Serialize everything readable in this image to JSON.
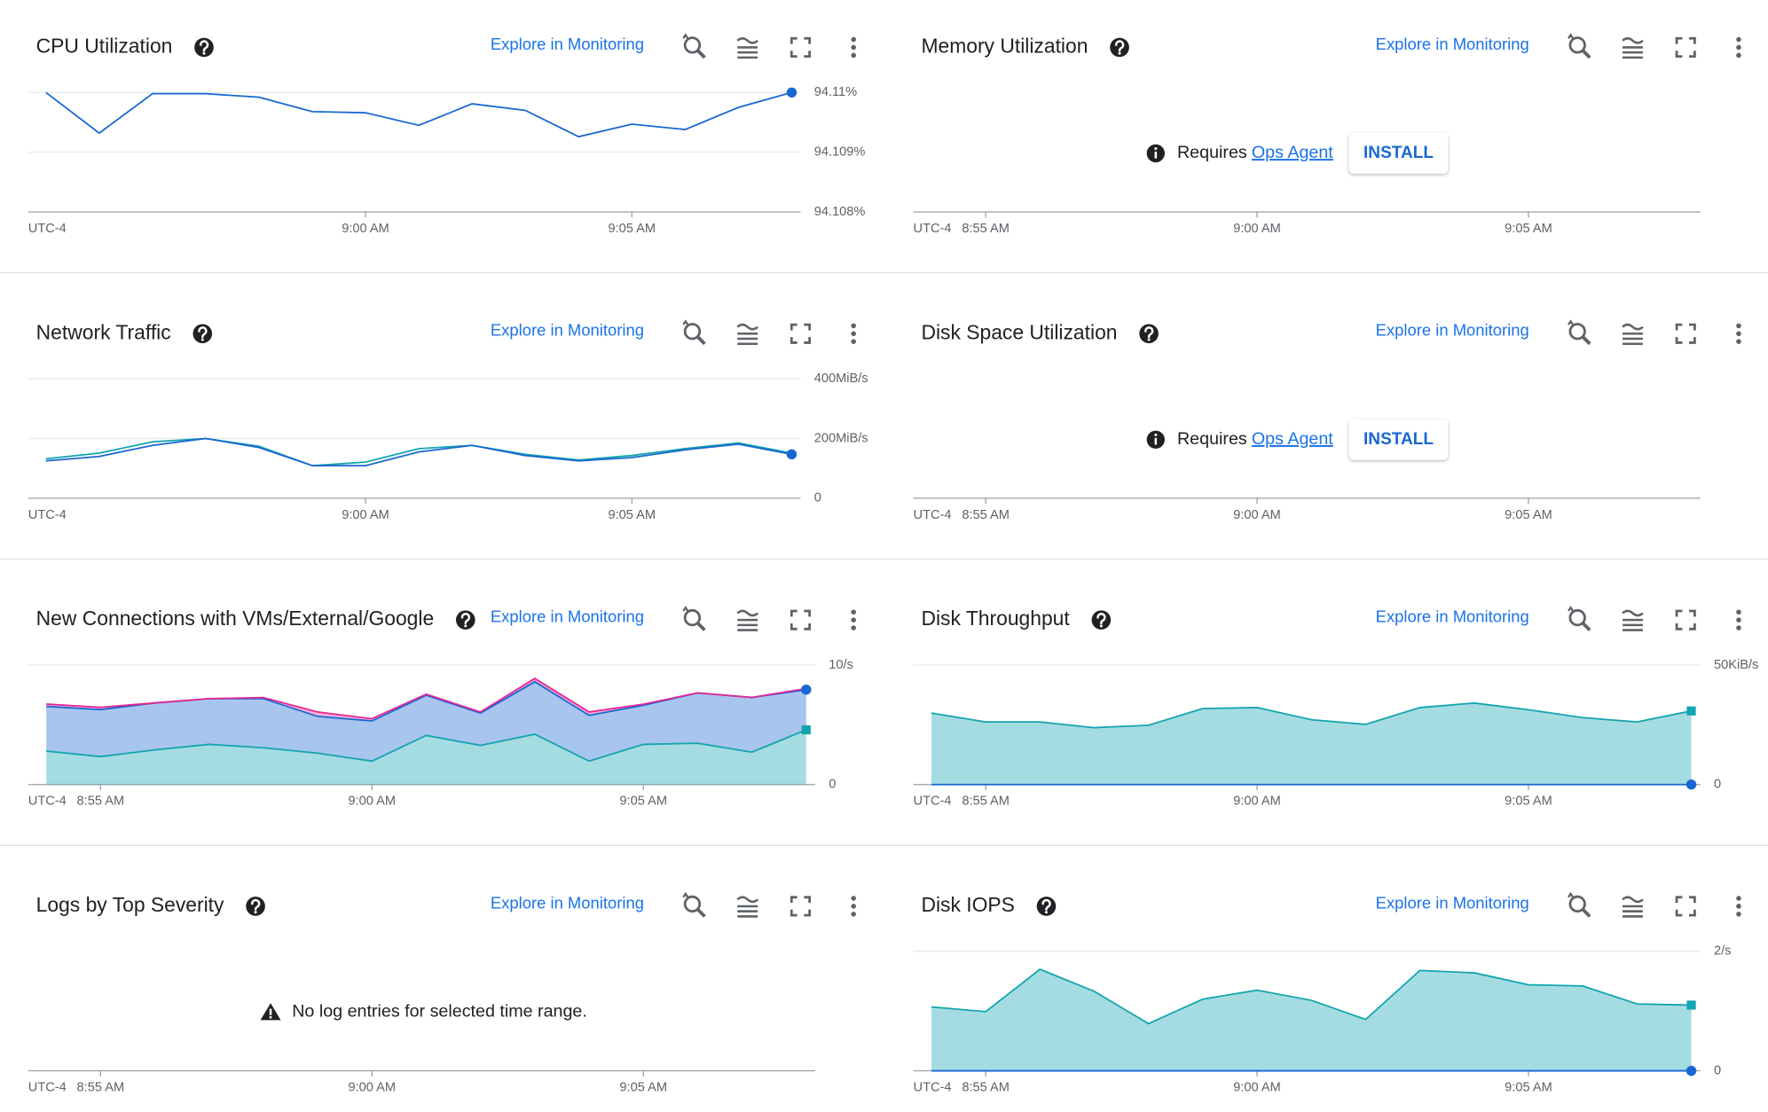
{
  "panels": [
    {
      "title": "CPU Utilization",
      "link": "Explore in Monitoring",
      "chart": {
        "type": "line",
        "timezone": "UTC-4",
        "xlim": [
          "8:53:40 AM",
          "9:08:10 AM"
        ],
        "xticks": [
          "9:00 AM",
          "9:05 AM"
        ],
        "ylim": [
          94.108,
          94.11
        ],
        "yticks": [
          {
            "value": 94.108,
            "label": "94.108%"
          },
          {
            "value": 94.109,
            "label": "94.109%"
          },
          {
            "value": 94.11,
            "label": "94.11%"
          }
        ],
        "x": [
          "8:54 AM",
          "8:55 AM",
          "8:56 AM",
          "8:57 AM",
          "8:58 AM",
          "8:59 AM",
          "9:00 AM",
          "9:01 AM",
          "9:02 AM",
          "9:03 AM",
          "9:04 AM",
          "9:05 AM",
          "9:06 AM",
          "9:07 AM",
          "9:08 AM"
        ],
        "series": [
          {
            "color": "#1967d2",
            "marker": "circle",
            "values": [
              94.11,
              94.10932,
              94.10998,
              94.10998,
              94.10992,
              94.10968,
              94.10966,
              94.10945,
              94.10981,
              94.1097,
              94.10926,
              94.10947,
              94.10938,
              94.10975,
              94.11
            ]
          }
        ]
      }
    },
    {
      "title": "Memory Utilization",
      "link": "Explore in Monitoring",
      "chart": {
        "type": "line",
        "timezone": "UTC-4",
        "xlim": [
          "8:53:40 AM",
          "9:08:10 AM"
        ],
        "xticks": [
          "8:55 AM",
          "9:00 AM",
          "9:05 AM"
        ],
        "series": []
      },
      "notice": {
        "icon": "info",
        "text": "Requires",
        "link": "Ops Agent",
        "button": "INSTALL"
      }
    },
    {
      "title": "Network Traffic",
      "link": "Explore in Monitoring",
      "chart": {
        "type": "line",
        "timezone": "UTC-4",
        "xlim": [
          "8:53:40 AM",
          "9:08:10 AM"
        ],
        "xticks": [
          "9:00 AM",
          "9:05 AM"
        ],
        "ylim": [
          0,
          400
        ],
        "yticks": [
          0,
          {
            "value": 200,
            "label": "200MiB/s"
          },
          {
            "value": 400,
            "label": "400MiB/s"
          }
        ],
        "x": [
          "8:54 AM",
          "8:55 AM",
          "8:56 AM",
          "8:57 AM",
          "8:58 AM",
          "8:59 AM",
          "9:00 AM",
          "9:01 AM",
          "9:02 AM",
          "9:03 AM",
          "9:04 AM",
          "9:05 AM",
          "9:06 AM",
          "9:07 AM",
          "9:08 AM"
        ],
        "series": [
          {
            "color": "#12a4af",
            "values": [
              132,
              151,
              189,
              200,
              174,
              109,
              121,
              166,
              177,
              147,
              128,
              143,
              166,
              185,
              151
            ]
          },
          {
            "color": "#1967d2",
            "marker": "circle",
            "values": [
              125,
              140,
              177,
              200,
              170,
              109,
              109,
              155,
              177,
              143,
              125,
              136,
              162,
              181,
              147
            ]
          }
        ]
      }
    },
    {
      "title": "Disk Space Utilization",
      "link": "Explore in Monitoring",
      "chart": {
        "type": "line",
        "timezone": "UTC-4",
        "xlim": [
          "8:53:40 AM",
          "9:08:10 AM"
        ],
        "xticks": [
          "8:55 AM",
          "9:00 AM",
          "9:05 AM"
        ],
        "series": []
      },
      "notice": {
        "icon": "info",
        "text": "Requires",
        "link": "Ops Agent",
        "button": "INSTALL"
      }
    },
    {
      "title": "New Connections with VMs/External/Google",
      "link": "Explore in Monitoring",
      "chart": {
        "type": "area",
        "timezone": "UTC-4",
        "xlim": [
          "8:53:40 AM",
          "9:08:10 AM"
        ],
        "xticks": [
          "8:55 AM",
          "9:00 AM",
          "9:05 AM"
        ],
        "ylim": [
          0,
          10
        ],
        "yticks": [
          0,
          {
            "value": 10,
            "label": "10/s"
          }
        ],
        "x": [
          "8:54 AM",
          "8:55 AM",
          "8:56 AM",
          "8:57 AM",
          "8:58 AM",
          "8:59 AM",
          "9:00 AM",
          "9:01 AM",
          "9:02 AM",
          "9:03 AM",
          "9:04 AM",
          "9:05 AM",
          "9:06 AM",
          "9:07 AM",
          "9:08 AM"
        ],
        "series": [
          {
            "color": "#12a4af",
            "marker": "square",
            "values": [
              2.8,
              2.34,
              2.9,
              3.36,
              3.08,
              2.62,
              1.96,
              4.11,
              3.27,
              4.21,
              1.96,
              3.36,
              3.46,
              2.71,
              4.58
            ]
          },
          {
            "color": "#1967d2",
            "marker": "circle",
            "values": [
              3.74,
              3.93,
              3.93,
              3.83,
              4.11,
              3.08,
              3.36,
              3.36,
              2.71,
              4.39,
              3.83,
              3.27,
              4.21,
              4.58,
              3.36
            ]
          },
          {
            "color": "#e52592",
            "values": [
              0.19,
              0.19,
              0,
              0,
              0.09,
              0.37,
              0.19,
              0.09,
              0.09,
              0.28,
              0.28,
              0.09,
              0,
              0,
              0.09
            ]
          }
        ]
      }
    },
    {
      "title": "Disk Throughput",
      "link": "Explore in Monitoring",
      "chart": {
        "type": "area",
        "timezone": "UTC-4",
        "xlim": [
          "8:53:40 AM",
          "9:08:10 AM"
        ],
        "xticks": [
          "8:55 AM",
          "9:00 AM",
          "9:05 AM"
        ],
        "ylim": [
          0,
          50
        ],
        "yticks": [
          0,
          {
            "value": 50,
            "label": "50KiB/s"
          }
        ],
        "x": [
          "8:54 AM",
          "8:55 AM",
          "8:56 AM",
          "8:57 AM",
          "8:58 AM",
          "8:59 AM",
          "9:00 AM",
          "9:01 AM",
          "9:02 AM",
          "9:03 AM",
          "9:04 AM",
          "9:05 AM",
          "9:06 AM",
          "9:07 AM",
          "9:08 AM"
        ],
        "series": [
          {
            "color": "#1967d2",
            "marker": "circle",
            "values": [
              0,
              0,
              0,
              0,
              0,
              0,
              0,
              0,
              0,
              0,
              0,
              0,
              0,
              0,
              0
            ]
          },
          {
            "color": "#12a4af",
            "marker": "square",
            "values": [
              29.9,
              26.2,
              26.2,
              23.8,
              24.8,
              31.8,
              32.2,
              27.1,
              25.2,
              32.2,
              34.1,
              31.3,
              28,
              26.2,
              30.8
            ]
          }
        ]
      }
    },
    {
      "title": "Logs by Top Severity",
      "link": "Explore in Monitoring",
      "chart": {
        "type": "line",
        "timezone": "UTC-4",
        "xlim": [
          "8:53:40 AM",
          "9:08:10 AM"
        ],
        "xticks": [
          "8:55 AM",
          "9:00 AM",
          "9:05 AM"
        ],
        "series": []
      },
      "notice": {
        "icon": "warning",
        "text": "No log entries for selected time range."
      }
    },
    {
      "title": "Disk IOPS",
      "link": "Explore in Monitoring",
      "chart": {
        "type": "area",
        "timezone": "UTC-4",
        "xlim": [
          "8:53:40 AM",
          "9:08:10 AM"
        ],
        "xticks": [
          "8:55 AM",
          "9:00 AM",
          "9:05 AM"
        ],
        "ylim": [
          0,
          2
        ],
        "yticks": [
          0,
          {
            "value": 2,
            "label": "2/s"
          }
        ],
        "x": [
          "8:54 AM",
          "8:55 AM",
          "8:56 AM",
          "8:57 AM",
          "8:58 AM",
          "8:59 AM",
          "9:00 AM",
          "9:01 AM",
          "9:02 AM",
          "9:03 AM",
          "9:04 AM",
          "9:05 AM",
          "9:06 AM",
          "9:07 AM",
          "9:08 AM"
        ],
        "series": [
          {
            "color": "#1967d2",
            "marker": "circle",
            "values": [
              0,
              0,
              0,
              0,
              0,
              0,
              0,
              0,
              0,
              0,
              0,
              0,
              0,
              0,
              0
            ]
          },
          {
            "color": "#12a4af",
            "marker": "square",
            "values": [
              1.07,
              0.99,
              1.7,
              1.33,
              0.79,
              1.2,
              1.35,
              1.18,
              0.86,
              1.68,
              1.64,
              1.44,
              1.42,
              1.12,
              1.1
            ]
          }
        ]
      }
    }
  ]
}
